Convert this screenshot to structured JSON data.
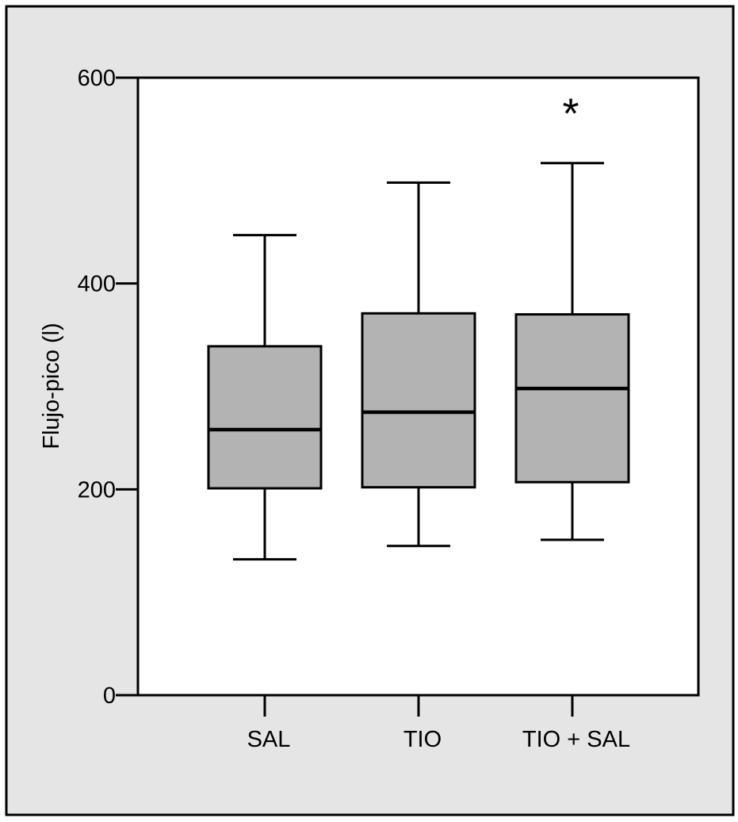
{
  "chart_data": {
    "type": "box",
    "title": "",
    "xlabel": "",
    "ylabel": "Flujo-pico (l)",
    "ylim": [
      0,
      600
    ],
    "yticks": [
      0,
      200,
      400,
      600
    ],
    "grid": false,
    "legend": "none",
    "colors": {
      "frame": "#e5e5e5",
      "plot_background": "#ffffff",
      "box_fill": "#b3b3b3",
      "stroke": "#000000"
    },
    "categories": [
      "SAL",
      "TIO",
      "TIO + SAL"
    ],
    "boxes": [
      {
        "category": "SAL",
        "min": 132,
        "q1": 201,
        "median": 258,
        "q3": 339,
        "max": 447
      },
      {
        "category": "TIO",
        "min": 145,
        "q1": 202,
        "median": 275,
        "q3": 371,
        "max": 498
      },
      {
        "category": "TIO + SAL",
        "min": 151,
        "q1": 207,
        "median": 298,
        "q3": 370,
        "max": 517
      }
    ],
    "annotations": [
      {
        "category": "TIO + SAL",
        "text": "*",
        "y": 568
      }
    ]
  }
}
